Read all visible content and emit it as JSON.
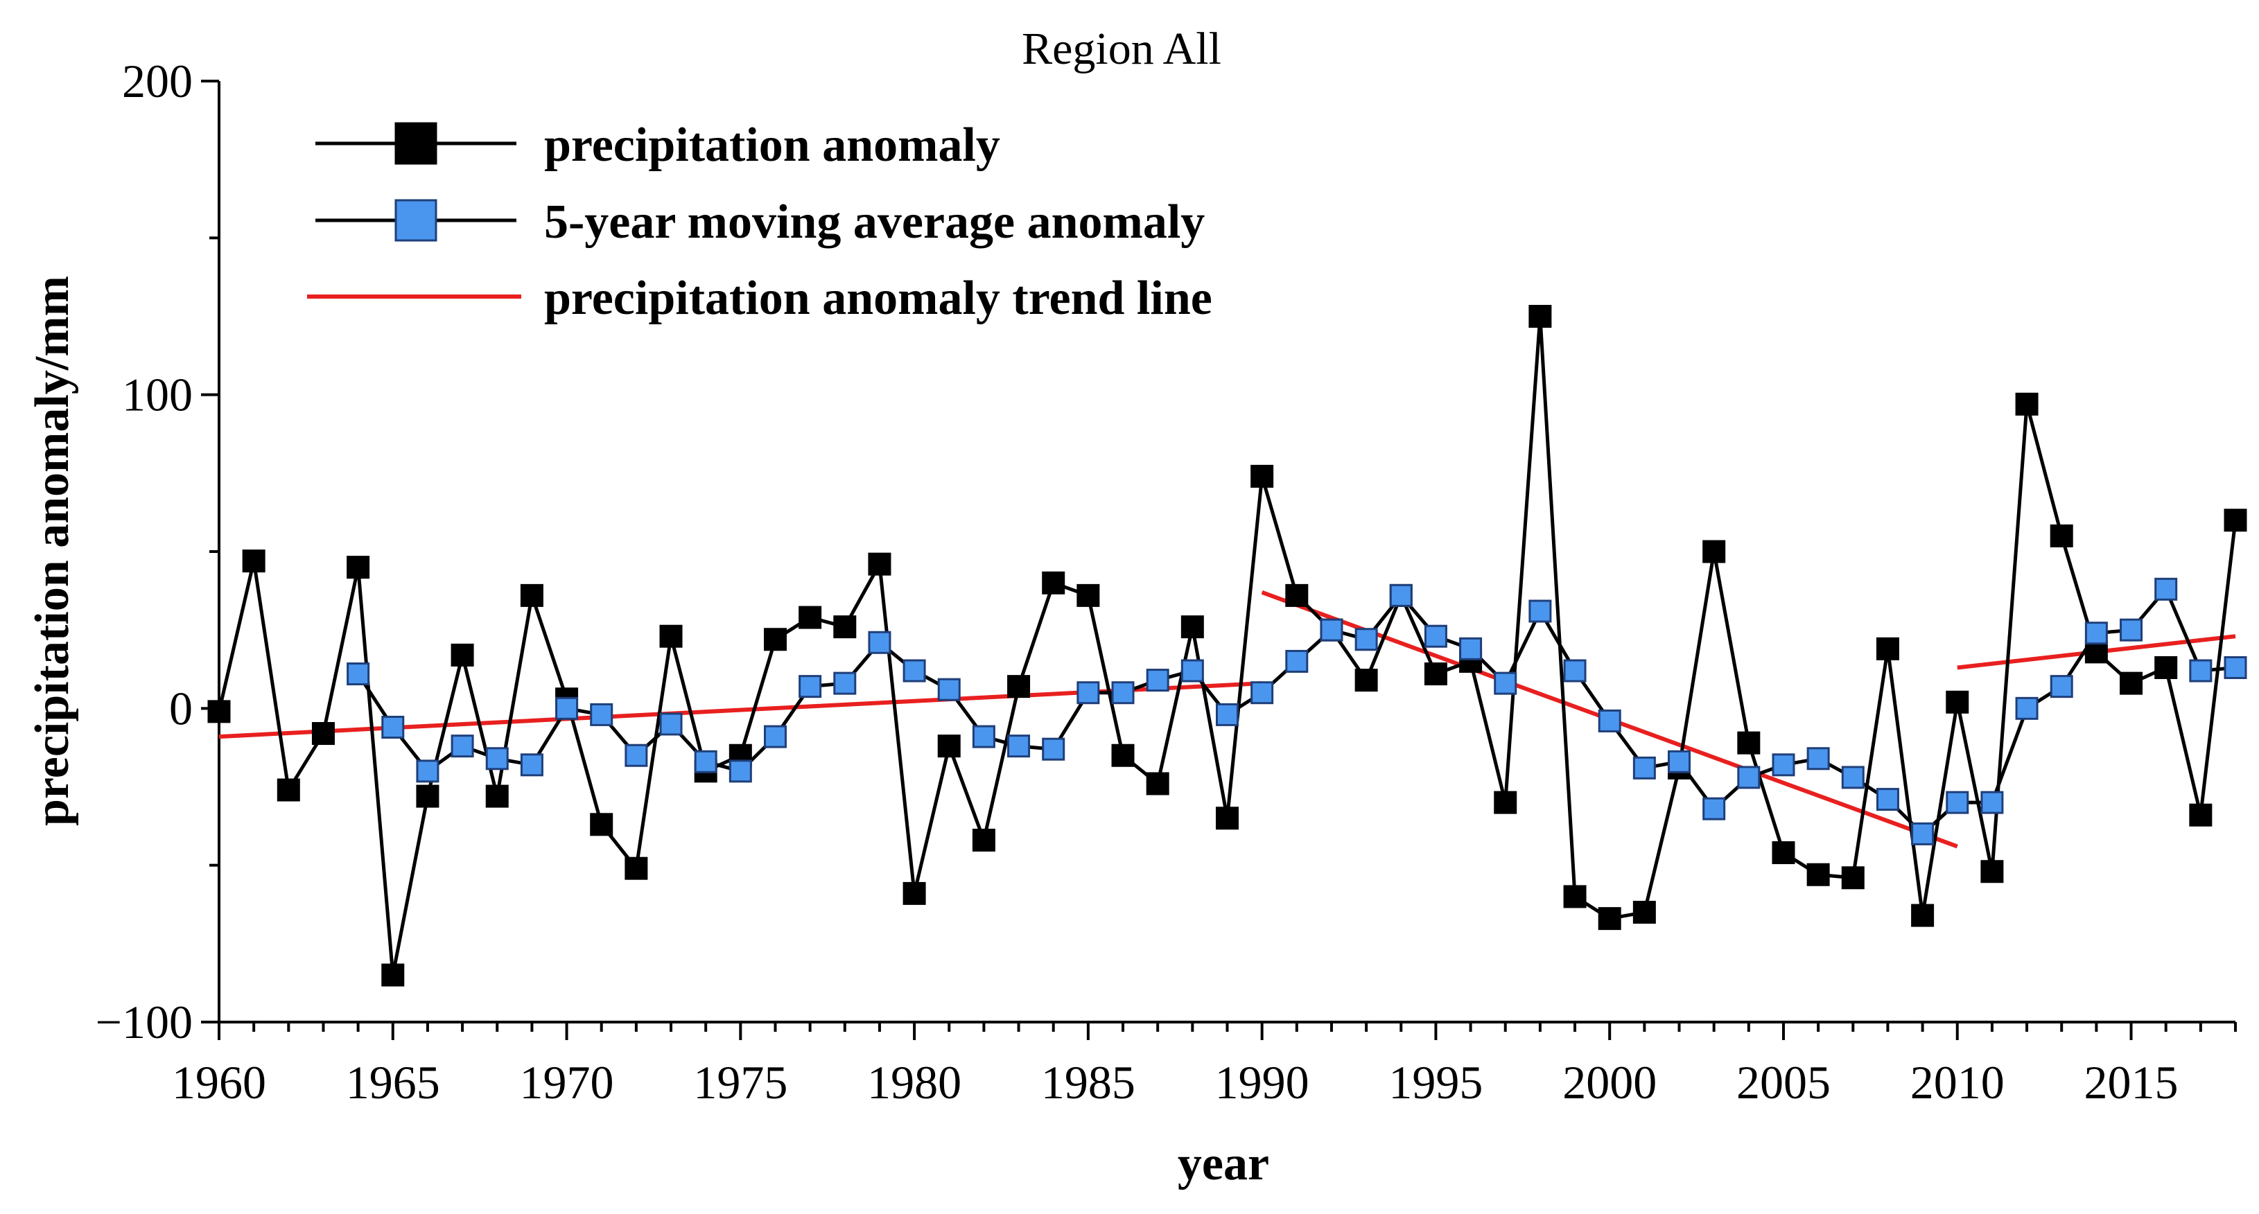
{
  "chart_data": {
    "type": "line",
    "title": "Region All",
    "xlabel": "year",
    "ylabel": "precipitation anomaly/mm",
    "xlim": [
      1960,
      2018
    ],
    "ylim": [
      -100,
      200
    ],
    "x_ticks": [
      1960,
      1965,
      1970,
      1975,
      1980,
      1985,
      1990,
      1995,
      2000,
      2005,
      2010,
      2015
    ],
    "y_ticks": [
      -100,
      0,
      100,
      200
    ],
    "y_tick_labels": [
      "−100",
      "0",
      "100",
      "200"
    ],
    "grid": false,
    "legend_position": "top-left",
    "colors": {
      "anomaly_marker": "#000000",
      "moving_avg_marker": "#4a96ef",
      "trend": "#e8201f",
      "line": "#000000"
    },
    "series": [
      {
        "name": "precipitation anomaly",
        "marker": "square-black",
        "x": [
          1960,
          1961,
          1962,
          1963,
          1964,
          1965,
          1966,
          1967,
          1968,
          1969,
          1970,
          1971,
          1972,
          1973,
          1974,
          1975,
          1976,
          1977,
          1978,
          1979,
          1980,
          1981,
          1982,
          1983,
          1984,
          1985,
          1986,
          1987,
          1988,
          1989,
          1990,
          1991,
          1992,
          1993,
          1994,
          1995,
          1996,
          1997,
          1998,
          1999,
          2000,
          2001,
          2002,
          2003,
          2004,
          2005,
          2006,
          2007,
          2008,
          2009,
          2010,
          2011,
          2012,
          2013,
          2014,
          2015,
          2016,
          2017,
          2018
        ],
        "values": [
          -1,
          47,
          -26,
          -8,
          45,
          -85,
          -28,
          17,
          -28,
          36,
          3,
          -37,
          -51,
          23,
          -20,
          -15,
          22,
          29,
          26,
          46,
          -59,
          -12,
          -42,
          7,
          40,
          36,
          -15,
          -24,
          26,
          -35,
          74,
          36,
          25,
          9,
          36,
          11,
          15,
          -30,
          125,
          -60,
          -67,
          -65,
          -19,
          50,
          -11,
          -46,
          -53,
          -54,
          19,
          -66,
          2,
          -52,
          97,
          55,
          18,
          8,
          13,
          -34,
          60
        ]
      },
      {
        "name": "5-year moving average anomaly",
        "marker": "square-blue",
        "x": [
          1964,
          1965,
          1966,
          1967,
          1968,
          1969,
          1970,
          1971,
          1972,
          1973,
          1974,
          1975,
          1976,
          1977,
          1978,
          1979,
          1980,
          1981,
          1982,
          1983,
          1984,
          1985,
          1986,
          1987,
          1988,
          1989,
          1990,
          1991,
          1992,
          1993,
          1994,
          1995,
          1996,
          1997,
          1998,
          1999,
          2000,
          2001,
          2002,
          2003,
          2004,
          2005,
          2006,
          2007,
          2008,
          2009,
          2010,
          2011,
          2012,
          2013,
          2014,
          2015,
          2016,
          2017,
          2018
        ],
        "values": [
          11,
          -6,
          -20,
          -12,
          -16,
          -18,
          0,
          -2,
          -15,
          -5,
          -17,
          -20,
          -9,
          7,
          8,
          21,
          12,
          6,
          -9,
          -12,
          -13,
          5,
          5,
          9,
          12,
          -2,
          5,
          15,
          25,
          22,
          36,
          23,
          19,
          8,
          31,
          12,
          -4,
          -19,
          -17,
          -32,
          -22,
          -18,
          -16,
          -22,
          -29,
          -40,
          -30,
          -30,
          0,
          7,
          24,
          25,
          38,
          12,
          13
        ]
      }
    ],
    "trend_lines": [
      {
        "name": "precipitation anomaly trend line",
        "x": [
          1960,
          1990
        ],
        "y": [
          -9,
          8
        ]
      },
      {
        "name": "precipitation anomaly trend line",
        "x": [
          1990,
          2010
        ],
        "y": [
          37,
          -44
        ]
      },
      {
        "name": "precipitation anomaly trend line",
        "x": [
          2010,
          2018
        ],
        "y": [
          13,
          23
        ]
      }
    ],
    "legend": [
      {
        "label": "precipitation anomaly",
        "type": "line-square-black"
      },
      {
        "label": "5-year moving average anomaly",
        "type": "line-square-blue"
      },
      {
        "label": "precipitation anomaly trend line",
        "type": "red-line"
      }
    ]
  }
}
